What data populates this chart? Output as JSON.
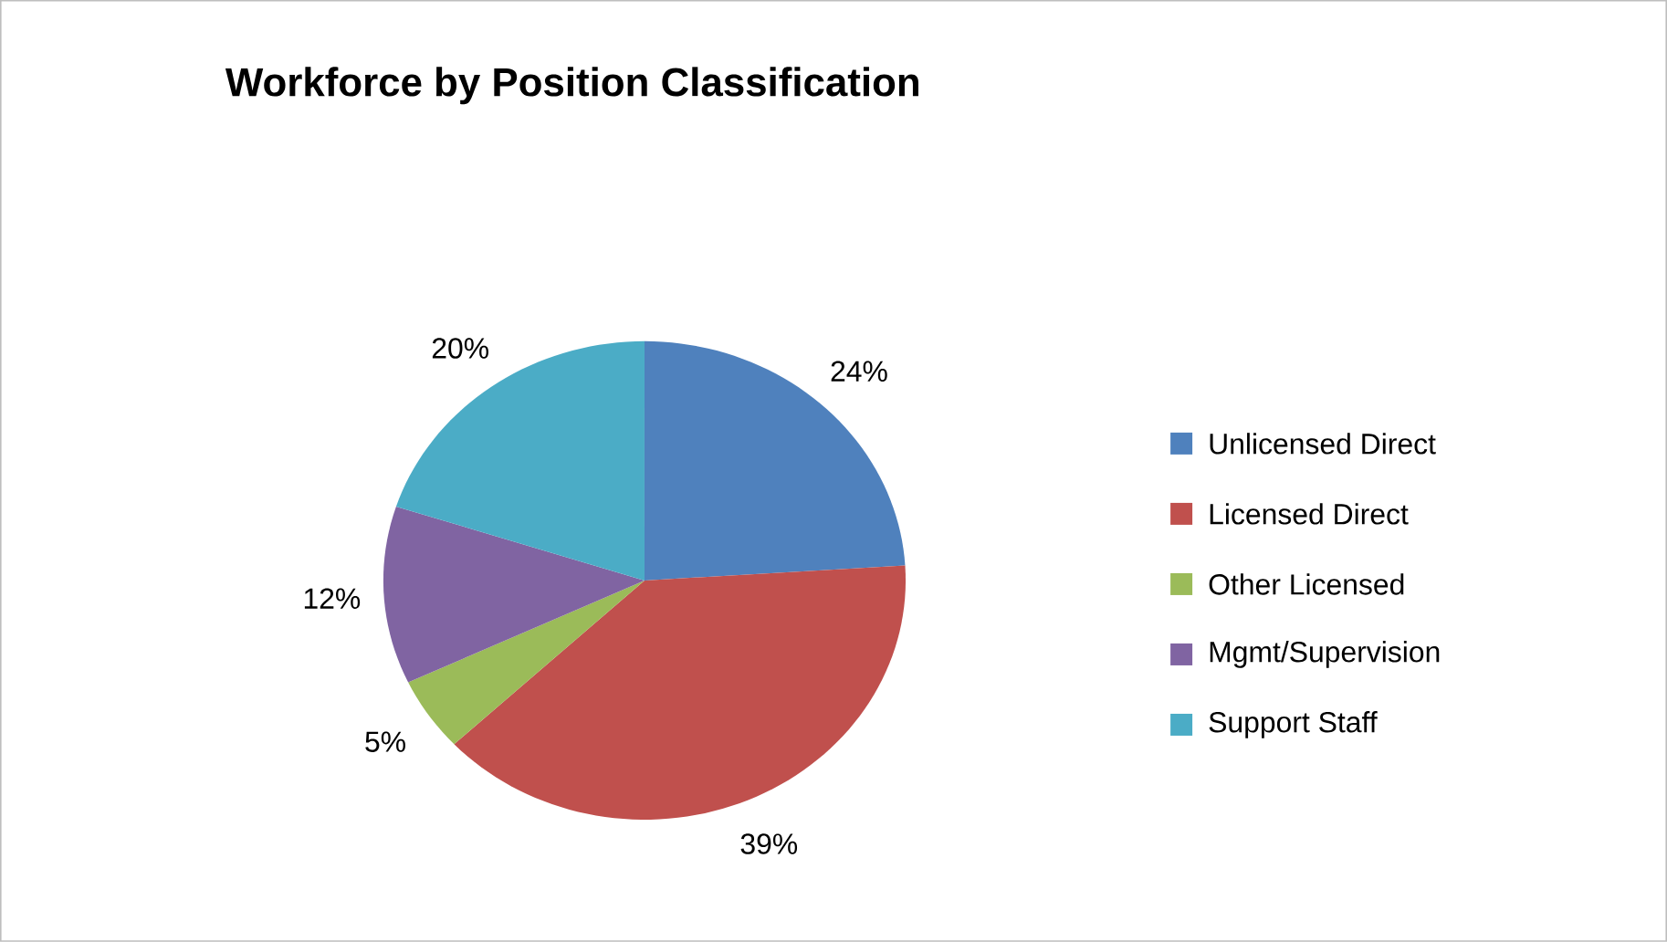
{
  "chart_data": {
    "type": "pie",
    "title": "Workforce by Position Classification",
    "categories": [
      "Unlicensed Direct",
      "Licensed Direct",
      "Other Licensed",
      "Mgmt/Supervision",
      "Support Staff"
    ],
    "values": [
      24,
      39,
      5,
      12,
      20
    ],
    "value_labels": [
      "24%",
      "39%",
      "5%",
      "12%",
      "20%"
    ],
    "colors": [
      "#4f81bd",
      "#c0504d",
      "#9bbb59",
      "#8064a2",
      "#4bacc6"
    ],
    "legend": "right"
  }
}
